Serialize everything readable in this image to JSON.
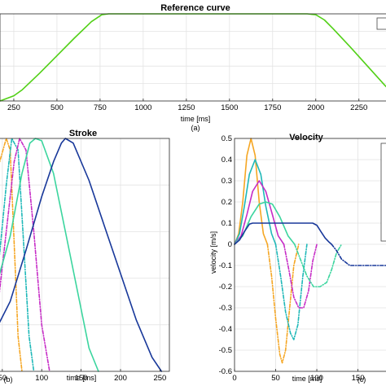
{
  "figure_captions": {
    "a": "(a)",
    "b": "(b)",
    "c": "(c)"
  },
  "chart_data": [
    {
      "id": "a",
      "type": "line",
      "title": "Reference curve",
      "xlabel": "time [ms]",
      "ylabel": "",
      "xlim": [
        170,
        2440
      ],
      "ylim": [
        0,
        1
      ],
      "x_ticks": [
        250,
        500,
        750,
        1000,
        1250,
        1500,
        1750,
        2000,
        2250
      ],
      "x_tick_labels": [
        "250",
        "500",
        "750",
        "1000",
        "1250",
        "1500",
        "1750",
        "2000",
        "2250"
      ],
      "grid": true,
      "series": [
        {
          "color": "#52d017",
          "x": [
            170,
            250,
            300,
            400,
            500,
            600,
            700,
            760,
            800,
            1000,
            1500,
            1950,
            2000,
            2050,
            2100,
            2200,
            2300,
            2400,
            2440
          ],
          "y": [
            0.0,
            0.06,
            0.13,
            0.32,
            0.52,
            0.72,
            0.91,
            0.99,
            1.0,
            1.0,
            1.0,
            1.0,
            0.99,
            0.93,
            0.83,
            0.62,
            0.4,
            0.18,
            0.1
          ]
        }
      ]
    },
    {
      "id": "b",
      "type": "line",
      "title": "Stroke",
      "xlabel": "time [ms]",
      "ylabel": "",
      "xlim": [
        45,
        262
      ],
      "ylim": [
        0,
        1
      ],
      "x_ticks": [
        50,
        100,
        150,
        200,
        250
      ],
      "x_tick_labels": [
        "50",
        "100",
        "150",
        "200",
        "250"
      ],
      "grid": true,
      "series": [
        {
          "color": "#f5a623",
          "dash": "4,2,1,2",
          "x": [
            45,
            55,
            60,
            65,
            70,
            75
          ],
          "y": [
            0.88,
            1.0,
            0.95,
            0.55,
            0.15,
            0.0
          ]
        },
        {
          "color": "#1fb8b8",
          "dash": "4,2,1,2",
          "x": [
            45,
            55,
            62,
            70,
            77,
            84,
            90
          ],
          "y": [
            0.45,
            0.8,
            1.0,
            0.95,
            0.55,
            0.15,
            0.0
          ]
        },
        {
          "color": "#c62cc6",
          "dash": "4,2,1,2",
          "x": [
            45,
            55,
            65,
            72,
            80,
            90,
            100,
            110
          ],
          "y": [
            0.3,
            0.6,
            0.9,
            1.0,
            0.95,
            0.6,
            0.2,
            0.0
          ]
        },
        {
          "color": "#3bd59e",
          "dash": "",
          "x": [
            45,
            60,
            75,
            85,
            92,
            100,
            115,
            130,
            145,
            160,
            172
          ],
          "y": [
            0.4,
            0.58,
            0.85,
            0.98,
            1.0,
            0.99,
            0.85,
            0.6,
            0.35,
            0.1,
            0.0
          ]
        },
        {
          "color": "#18389a",
          "dash": "",
          "x": [
            45,
            60,
            80,
            100,
            115,
            125,
            130,
            140,
            160,
            180,
            200,
            220,
            240,
            252
          ],
          "y": [
            0.2,
            0.3,
            0.52,
            0.75,
            0.9,
            0.98,
            1.0,
            0.98,
            0.82,
            0.62,
            0.42,
            0.22,
            0.06,
            0.0
          ]
        }
      ]
    },
    {
      "id": "c",
      "type": "line",
      "title": "Velocity",
      "xlabel": "time [ms]",
      "ylabel": "velocity [m/s]",
      "xlim": [
        0,
        190
      ],
      "ylim": [
        -0.6,
        0.5
      ],
      "x_ticks": [
        0,
        50,
        100,
        150
      ],
      "x_tick_labels": [
        "0",
        "50",
        "100",
        "150"
      ],
      "y_ticks": [
        0.5,
        0.4,
        0.3,
        0.2,
        0.1,
        0,
        -0.1,
        -0.2,
        -0.3,
        -0.4,
        -0.5,
        -0.6
      ],
      "y_tick_labels": [
        "0.5",
        "0.4",
        "0.3",
        "0.2",
        "0.1",
        "0",
        "-0.1",
        "-0.2",
        "-0.3",
        "-0.4",
        "-0.5",
        "-0.6"
      ],
      "grid": true,
      "series": [
        {
          "color": "#f5a623",
          "dash": "",
          "x": [
            0,
            5,
            10,
            15,
            20,
            25,
            30,
            35,
            40
          ],
          "y": [
            0,
            0.05,
            0.2,
            0.42,
            0.5,
            0.42,
            0.2,
            0.05,
            0
          ]
        },
        {
          "color": "#f5a623",
          "dash": "4,2,1,2",
          "x": [
            40,
            45,
            50,
            55,
            58,
            62,
            67,
            72,
            78
          ],
          "y": [
            0,
            -0.15,
            -0.35,
            -0.52,
            -0.56,
            -0.5,
            -0.3,
            -0.1,
            0
          ]
        },
        {
          "color": "#1fb8b8",
          "dash": "",
          "x": [
            0,
            6,
            12,
            18,
            25,
            32,
            38,
            45,
            50
          ],
          "y": [
            0,
            0.05,
            0.18,
            0.33,
            0.4,
            0.33,
            0.18,
            0.05,
            0
          ]
        },
        {
          "color": "#1fb8b8",
          "dash": "4,2,1,2",
          "x": [
            50,
            56,
            62,
            68,
            72,
            77,
            83,
            88
          ],
          "y": [
            0,
            -0.15,
            -0.32,
            -0.42,
            -0.45,
            -0.38,
            -0.15,
            0
          ]
        },
        {
          "color": "#c62cc6",
          "dash": "",
          "x": [
            0,
            8,
            15,
            22,
            30,
            38,
            46,
            53,
            60
          ],
          "y": [
            0,
            0.04,
            0.14,
            0.25,
            0.3,
            0.25,
            0.14,
            0.04,
            0
          ]
        },
        {
          "color": "#c62cc6",
          "dash": "4,2,1,2",
          "x": [
            60,
            66,
            72,
            78,
            84,
            90,
            95,
            100
          ],
          "y": [
            0,
            -0.12,
            -0.25,
            -0.3,
            -0.3,
            -0.22,
            -0.08,
            0
          ]
        },
        {
          "color": "#3bd59e",
          "dash": "",
          "x": [
            0,
            10,
            20,
            30,
            38,
            46,
            55,
            65,
            73
          ],
          "y": [
            0,
            0.04,
            0.13,
            0.19,
            0.2,
            0.19,
            0.13,
            0.04,
            0
          ]
        },
        {
          "color": "#3bd59e",
          "dash": "4,2,1,2",
          "x": [
            73,
            80,
            88,
            96,
            104,
            112,
            118,
            124,
            130
          ],
          "y": [
            0,
            -0.07,
            -0.15,
            -0.2,
            -0.2,
            -0.18,
            -0.12,
            -0.04,
            0
          ]
        },
        {
          "color": "#18389a",
          "dash": "",
          "x": [
            0,
            6,
            12,
            18,
            22,
            95,
            100,
            105,
            110,
            115,
            118
          ],
          "y": [
            0,
            0.02,
            0.06,
            0.095,
            0.1,
            0.1,
            0.09,
            0.06,
            0.03,
            0.01,
            0
          ]
        },
        {
          "color": "#18389a",
          "dash": "4,2,1,2",
          "x": [
            118,
            124,
            130,
            140,
            150,
            190
          ],
          "y": [
            0,
            -0.03,
            -0.07,
            -0.1,
            -0.1,
            -0.1
          ]
        }
      ]
    }
  ]
}
